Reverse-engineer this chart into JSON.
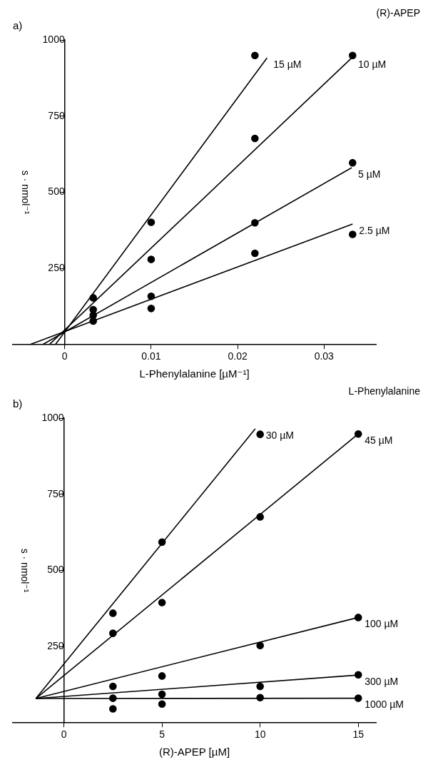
{
  "chart_data": [
    {
      "type": "scatter",
      "title": "a)",
      "legend_title": "(R)-APEP",
      "xlabel": "L-Phenylalanine [µM⁻¹]",
      "ylabel": "s · nmol⁻¹",
      "xlim": [
        -0.006,
        0.036
      ],
      "xticks": [
        0,
        0.01,
        0.02,
        0.03
      ],
      "ylim": [
        0,
        1000
      ],
      "yticks": [
        250,
        500,
        750,
        1000
      ],
      "series": [
        {
          "type": "scatter",
          "marker": "circle",
          "color": "#000000",
          "x": [
            0.0033,
            0.01,
            0.022
          ],
          "values": [
            154,
            402,
            949
          ]
        },
        {
          "type": "scatter",
          "marker": "circle",
          "color": "#000000",
          "x": [
            0.0033,
            0.01,
            0.022,
            0.0333
          ],
          "values": [
            115,
            280,
            677,
            949
          ]
        },
        {
          "type": "scatter",
          "marker": "circle",
          "color": "#000000",
          "x": [
            0.0033,
            0.01,
            0.022,
            0.0333
          ],
          "values": [
            97,
            159,
            400,
            597
          ]
        },
        {
          "type": "scatter",
          "marker": "circle",
          "color": "#000000",
          "x": [
            0.0033,
            0.01,
            0.022,
            0.0333
          ],
          "values": [
            78,
            119,
            300,
            362
          ]
        },
        {
          "type": "line",
          "name": "15 µM",
          "color": "#000000",
          "x": [
            -0.0011,
            0.0234
          ],
          "values": [
            0,
            941
          ]
        },
        {
          "type": "line",
          "name": "10 µM",
          "color": "#000000",
          "x": [
            -0.0018,
            0.0332
          ],
          "values": [
            0,
            941
          ]
        },
        {
          "type": "line",
          "name": "5 µM",
          "color": "#000000",
          "x": [
            -0.0026,
            0.0332
          ],
          "values": [
            0,
            581
          ]
        },
        {
          "type": "line",
          "name": "2.5 µM",
          "color": "#000000",
          "x": [
            -0.0041,
            0.0333
          ],
          "values": [
            0,
            396
          ]
        }
      ]
    },
    {
      "type": "scatter",
      "title": "b)",
      "legend_title": "L-Phenylalanine",
      "xlabel": "(R)-APEP [µM]",
      "ylabel": "s · nmol⁻¹",
      "xlim": [
        -2.6,
        15.9
      ],
      "xticks": [
        0,
        5,
        10,
        15
      ],
      "ylim": [
        0,
        1000
      ],
      "yticks": [
        250,
        500,
        750,
        1000
      ],
      "series": [
        {
          "type": "scatter",
          "marker": "circle",
          "color": "#000000",
          "x": [
            2.5,
            5,
            10
          ],
          "values": [
            360,
            593,
            947
          ]
        },
        {
          "type": "scatter",
          "marker": "circle",
          "color": "#000000",
          "x": [
            2.5,
            5,
            10,
            15
          ],
          "values": [
            294,
            395,
            676,
            948
          ]
        },
        {
          "type": "scatter",
          "marker": "circle",
          "color": "#000000",
          "x": [
            2.5,
            5,
            10,
            15
          ],
          "values": [
            120,
            154,
            254,
            346
          ]
        },
        {
          "type": "scatter",
          "marker": "circle",
          "color": "#000000",
          "x": [
            2.5,
            5,
            10,
            15
          ],
          "values": [
            81,
            94,
            120,
            158
          ]
        },
        {
          "type": "scatter",
          "marker": "circle",
          "color": "#000000",
          "x": [
            2.5,
            5,
            10,
            15
          ],
          "values": [
            46,
            62,
            83,
            81
          ]
        },
        {
          "type": "line",
          "name": "30 µM",
          "color": "#000000",
          "x": [
            -1.43,
            9.75
          ],
          "values": [
            80,
            965
          ]
        },
        {
          "type": "line",
          "name": "45 µM",
          "color": "#000000",
          "x": [
            -1.43,
            15
          ],
          "values": [
            80,
            948
          ]
        },
        {
          "type": "line",
          "name": "100 µM",
          "color": "#000000",
          "x": [
            -1.43,
            15
          ],
          "values": [
            80,
            346
          ]
        },
        {
          "type": "line",
          "name": "300 µM",
          "color": "#000000",
          "x": [
            -1.43,
            15
          ],
          "values": [
            80,
            157
          ]
        },
        {
          "type": "line",
          "name": "1000 µM",
          "color": "#000000",
          "x": [
            -1.43,
            15
          ],
          "values": [
            80,
            81
          ]
        }
      ]
    }
  ]
}
